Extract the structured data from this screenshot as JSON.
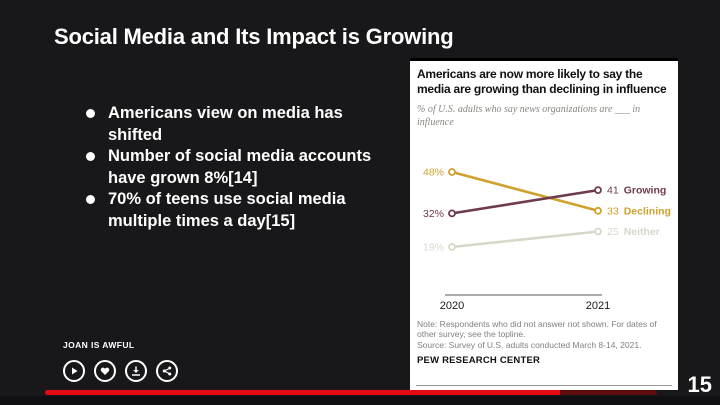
{
  "slide": {
    "title": "Social Media and Its Impact is Growing",
    "bullets": [
      "Americans view on media has shifted",
      "Number of social media accounts have grown 8%[14]",
      "70% of teens use social media multiple times a day[15]"
    ],
    "page_number": "15"
  },
  "player": {
    "show_title": "JOAN IS AWFUL",
    "controls": [
      "play-icon",
      "heart-icon",
      "download-icon",
      "share-icon"
    ],
    "progress_color": "#e50914",
    "buffer_color": "#5f0d0d"
  },
  "chart_panel": {
    "note_line1": "Note: Respondents who did not answer not shown. For dates of other survey, see the topline.",
    "note_line2": "Source: Survey of U.S. adults conducted March 8-14, 2021.",
    "footer": "PEW RESEARCH CENTER"
  },
  "chart_data": {
    "type": "line",
    "title": "Americans are now more likely to say the media are growing than declining in influence",
    "subtitle": "% of U.S. adults who say news organizations are ___ in influence",
    "categories": [
      "2020",
      "2021"
    ],
    "series": [
      {
        "name": "Growing",
        "values": [
          32,
          41
        ],
        "color": "#6e3b4e"
      },
      {
        "name": "Declining",
        "values": [
          48,
          33
        ],
        "color": "#cfa22e"
      },
      {
        "name": "Neither",
        "values": [
          19,
          25
        ],
        "color": "#d9d7c9"
      }
    ],
    "value_labels": {
      "first_point_suffix": "%",
      "end_point_shows_name": true
    },
    "ylim": [
      15,
      52
    ],
    "grid": false,
    "legend": "inline-end-labels",
    "axis_color": "#58585a",
    "tick_label_color": "#1a1a1a"
  }
}
